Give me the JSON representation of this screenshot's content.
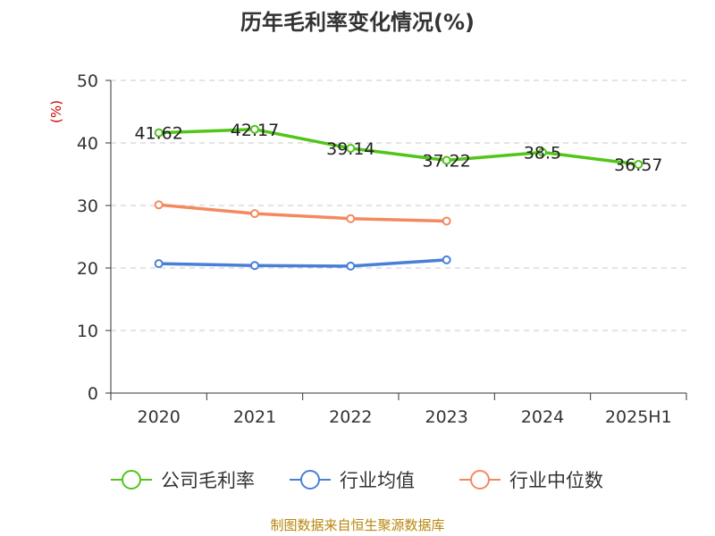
{
  "chart_data": {
    "type": "line",
    "title": "历年毛利率变化情况(%)",
    "ylabel": "(%)",
    "categories": [
      "2020",
      "2021",
      "2022",
      "2023",
      "2024",
      "2025H1"
    ],
    "ylim": [
      0,
      50
    ],
    "yticks": [
      0,
      10,
      20,
      30,
      40,
      50
    ],
    "grid": true,
    "legend_position": "bottom",
    "series": [
      {
        "name": "公司毛利率",
        "color": "#52c41a",
        "values": [
          41.62,
          42.17,
          39.14,
          37.22,
          38.5,
          36.57
        ],
        "labels": [
          "41.62",
          "42.17",
          "39.14",
          "37.22",
          "38.5",
          "36.57"
        ]
      },
      {
        "name": "行业均值",
        "color": "#4a7fd9",
        "values": [
          20.7,
          20.4,
          20.3,
          21.3,
          null,
          null
        ]
      },
      {
        "name": "行业中位数",
        "color": "#f4895f",
        "values": [
          30.1,
          28.7,
          27.9,
          27.5,
          null,
          null
        ]
      }
    ]
  },
  "source": "制图数据来自恒生聚源数据库"
}
